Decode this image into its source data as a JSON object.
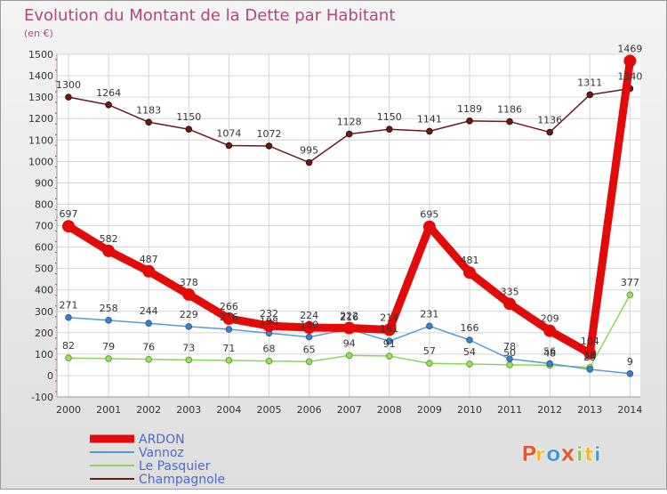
{
  "chart_data": {
    "type": "line",
    "title": "Evolution du Montant de la Dette par Habitant",
    "subtitle": "(en €)",
    "xlabel": "",
    "ylabel": "",
    "categories": [
      "2000",
      "2001",
      "2002",
      "2003",
      "2004",
      "2005",
      "2006",
      "2007",
      "2008",
      "2009",
      "2010",
      "2011",
      "2012",
      "2013",
      "2014"
    ],
    "ylim": [
      -100,
      1500
    ],
    "yticks": [
      -100,
      0,
      100,
      200,
      300,
      400,
      500,
      600,
      700,
      800,
      900,
      1000,
      1100,
      1200,
      1300,
      1400,
      1500
    ],
    "grid": true,
    "legend_position": "bottom-left",
    "series": [
      {
        "name": "ARDON",
        "color": "#e30a0a",
        "values": [
          697,
          582,
          487,
          378,
          266,
          232,
          224,
          222,
          214,
          695,
          481,
          335,
          209,
          104,
          1469
        ],
        "labels": [
          "697",
          "582",
          "487",
          "378",
          "266",
          "232",
          "224",
          "222",
          "214",
          "695",
          "481",
          "335",
          "209",
          "104",
          "1469"
        ]
      },
      {
        "name": "Vannoz",
        "color": "#5a9ad2",
        "values": [
          271,
          258,
          244,
          229,
          216,
          198,
          180,
          216,
          161,
          231,
          166,
          78,
          56,
          29,
          9
        ],
        "labels": [
          "271",
          "258",
          "244",
          "229",
          "216",
          "198",
          "180",
          "216",
          "161",
          "231",
          "166",
          "78",
          "56",
          "29",
          "9"
        ]
      },
      {
        "name": "Le Pasquier",
        "color": "#8fd45a",
        "values": [
          82,
          79,
          76,
          73,
          71,
          68,
          65,
          94,
          91,
          57,
          54,
          50,
          48,
          38,
          377
        ],
        "labels": [
          "82",
          "79",
          "76",
          "73",
          "71",
          "68",
          "65",
          "94",
          "91",
          "57",
          "54",
          "50",
          "48",
          "38",
          "377"
        ]
      },
      {
        "name": "Champagnole",
        "color": "#6b1a1a",
        "values": [
          1300,
          1264,
          1183,
          1150,
          1074,
          1072,
          995,
          1128,
          1150,
          1141,
          1189,
          1186,
          1136,
          1311,
          1340
        ],
        "labels": [
          "1300",
          "1264",
          "1183",
          "1150",
          "1074",
          "1072",
          "995",
          "1128",
          "1150",
          "1141",
          "1189",
          "1186",
          "1136",
          "1311",
          "1340"
        ]
      }
    ]
  },
  "brand": {
    "letters": [
      "P",
      "r",
      "o",
      "x",
      "i",
      "t",
      "i"
    ],
    "colors": [
      "#e8572a",
      "#f7b21c",
      "#3a9ad9",
      "#e8572a",
      "#8cc63f",
      "#f7b21c",
      "#3a9ad9"
    ]
  }
}
